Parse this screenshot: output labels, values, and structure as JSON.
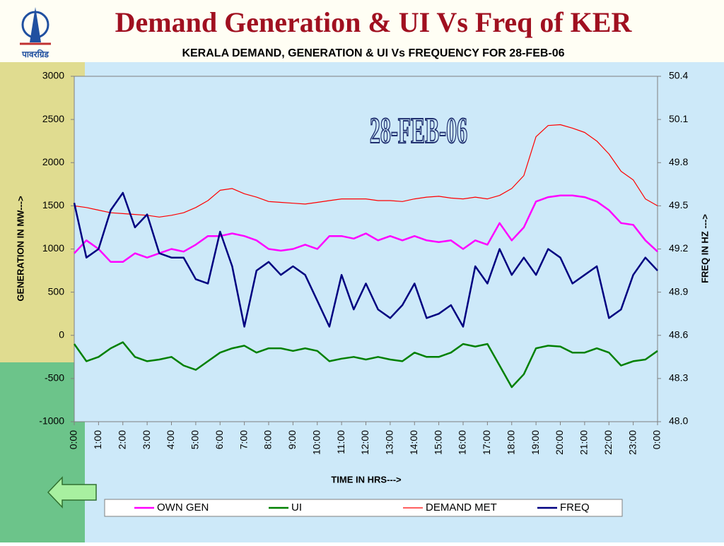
{
  "header": {
    "logo_text": "पावरग्रिड",
    "title": "Demand Generation & UI Vs Freq of KER"
  },
  "chart_data": {
    "type": "line",
    "title": "KERALA  DEMAND, GENERATION & UI Vs FREQUENCY FOR 28-FEB-06",
    "annotation": "28-FEB-06",
    "x_label": "TIME IN HRS--->",
    "y_label": "GENERATION IN MW--->",
    "y2_label": "FREQ IN HZ --->",
    "x": [
      0,
      0.5,
      1,
      1.5,
      2,
      2.5,
      3,
      3.5,
      4,
      4.5,
      5,
      5.5,
      6,
      6.5,
      7,
      7.5,
      8,
      8.5,
      9,
      9.5,
      10,
      10.5,
      11,
      11.5,
      12,
      12.5,
      13,
      13.5,
      14,
      14.5,
      15,
      15.5,
      16,
      16.5,
      17,
      17.5,
      18,
      18.5,
      19,
      19.5,
      20,
      20.5,
      21,
      21.5,
      22,
      22.5,
      23,
      23.5,
      24
    ],
    "xlim": [
      0,
      24
    ],
    "xticks": [
      {
        "value": 0,
        "label": "0:00"
      },
      {
        "value": 1,
        "label": "1:00"
      },
      {
        "value": 2,
        "label": "2:00"
      },
      {
        "value": 3,
        "label": "3:00"
      },
      {
        "value": 4,
        "label": "4:00"
      },
      {
        "value": 5,
        "label": "5:00"
      },
      {
        "value": 6,
        "label": "6:00"
      },
      {
        "value": 7,
        "label": "7:00"
      },
      {
        "value": 8,
        "label": "8:00"
      },
      {
        "value": 9,
        "label": "9:00"
      },
      {
        "value": 10,
        "label": "10:00"
      },
      {
        "value": 11,
        "label": "11:00"
      },
      {
        "value": 12,
        "label": "12:00"
      },
      {
        "value": 13,
        "label": "13:00"
      },
      {
        "value": 14,
        "label": "14:00"
      },
      {
        "value": 15,
        "label": "15:00"
      },
      {
        "value": 16,
        "label": "16:00"
      },
      {
        "value": 17,
        "label": "17:00"
      },
      {
        "value": 18,
        "label": "18:00"
      },
      {
        "value": 19,
        "label": "19:00"
      },
      {
        "value": 20,
        "label": "20:00"
      },
      {
        "value": 21,
        "label": "21:00"
      },
      {
        "value": 22,
        "label": "22:00"
      },
      {
        "value": 23,
        "label": "23:00"
      },
      {
        "value": 24,
        "label": "0:00"
      }
    ],
    "ylim": [
      -1000,
      3000
    ],
    "yticks": [
      -1000,
      -500,
      0,
      500,
      1000,
      1500,
      2000,
      2500,
      3000
    ],
    "y2lim": [
      48,
      50.4
    ],
    "y2ticks": [
      {
        "value": 48,
        "label": "48.0"
      },
      48.3,
      48.6,
      48.9,
      49.2,
      49.5,
      49.8,
      50.1,
      50.4
    ],
    "legend": "bottom",
    "series": [
      {
        "name": "OWN GEN",
        "color": "#ff00ff",
        "values": [
          950,
          1100,
          1000,
          850,
          850,
          950,
          900,
          950,
          1000,
          970,
          1050,
          1150,
          1150,
          1180,
          1150,
          1100,
          1000,
          980,
          1000,
          1050,
          1000,
          1150,
          1150,
          1120,
          1180,
          1100,
          1150,
          1100,
          1150,
          1100,
          1080,
          1100,
          1000,
          1100,
          1050,
          1300,
          1100,
          1250,
          1550,
          1600,
          1620,
          1620,
          1600,
          1550,
          1450,
          1300,
          1280,
          1100,
          970
        ]
      },
      {
        "name": "UI",
        "color": "#008000",
        "values": [
          -100,
          -300,
          -250,
          -150,
          -80,
          -250,
          -300,
          -280,
          -250,
          -350,
          -400,
          -300,
          -200,
          -150,
          -120,
          -200,
          -150,
          -150,
          -180,
          -150,
          -180,
          -300,
          -270,
          -250,
          -280,
          -250,
          -280,
          -300,
          -200,
          -250,
          -250,
          -200,
          -100,
          -130,
          -100,
          -350,
          -600,
          -450,
          -150,
          -120,
          -130,
          -200,
          -200,
          -150,
          -200,
          -350,
          -300,
          -280,
          -180
        ]
      },
      {
        "name": "DEMAND MET",
        "color": "#ff0000",
        "values": [
          1500,
          1480,
          1450,
          1420,
          1410,
          1400,
          1390,
          1370,
          1390,
          1420,
          1480,
          1560,
          1680,
          1700,
          1640,
          1600,
          1550,
          1540,
          1530,
          1520,
          1540,
          1560,
          1580,
          1580,
          1580,
          1560,
          1560,
          1550,
          1580,
          1600,
          1610,
          1590,
          1580,
          1600,
          1580,
          1620,
          1700,
          1850,
          2300,
          2430,
          2440,
          2400,
          2350,
          2250,
          2100,
          1900,
          1800,
          1580,
          1500
        ]
      },
      {
        "name": "FREQ",
        "color": "#000080",
        "axis": "y2",
        "values": [
          49.52,
          49.14,
          49.2,
          49.47,
          49.59,
          49.35,
          49.44,
          49.17,
          49.14,
          49.14,
          48.99,
          48.96,
          49.32,
          49.08,
          48.66,
          49.05,
          49.11,
          49.02,
          49.08,
          49.02,
          48.84,
          48.66,
          49.02,
          48.78,
          48.96,
          48.78,
          48.72,
          48.81,
          48.96,
          48.72,
          48.75,
          48.81,
          48.66,
          49.08,
          48.96,
          49.2,
          49.02,
          49.14,
          49.02,
          49.2,
          49.14,
          48.96,
          49.02,
          49.08,
          48.72,
          48.78,
          49.02,
          49.14,
          49.05
        ]
      }
    ]
  }
}
